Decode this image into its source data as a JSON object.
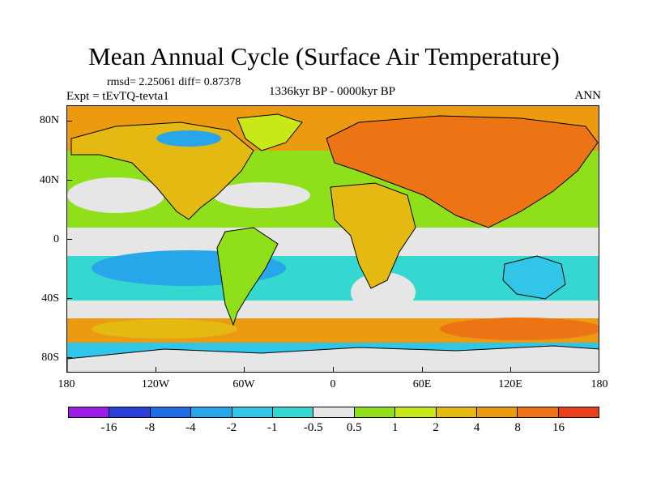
{
  "title": "Mean Annual Cycle (Surface Air Temperature)",
  "stats": "rmsd= 2.25061 diff= 0.87378",
  "experiment": "Expt = tEvTQ-tevta1",
  "period": "1336kyr BP - 0000kyr BP",
  "season": "ANN",
  "y_ticks": [
    "80N",
    "40N",
    "0",
    "40S",
    "80S"
  ],
  "x_ticks": [
    "180",
    "120W",
    "60W",
    "0",
    "60E",
    "120E",
    "180"
  ],
  "colorbar": {
    "colors": [
      "#9c1de8",
      "#2b3fd8",
      "#1f6ee6",
      "#27a6ea",
      "#31c6e8",
      "#34d8d0",
      "#e6e6e6",
      "#8fe01a",
      "#c8e818",
      "#e4ba12",
      "#ec9a10",
      "#ec7414",
      "#e8401c"
    ],
    "labels": [
      "-16",
      "-8",
      "-4",
      "-2",
      "-1",
      "-0.5",
      "0.5",
      "1",
      "2",
      "4",
      "8",
      "16"
    ]
  },
  "map_colors": {
    "land_warm": "#ec9a10",
    "land_hot": "#ec7414",
    "mild": "#c8e818",
    "green": "#8fe01a",
    "cyan": "#34d8d0",
    "cool": "#31c6e8",
    "blue": "#27a6ea",
    "neutral": "#e6e6e6"
  }
}
